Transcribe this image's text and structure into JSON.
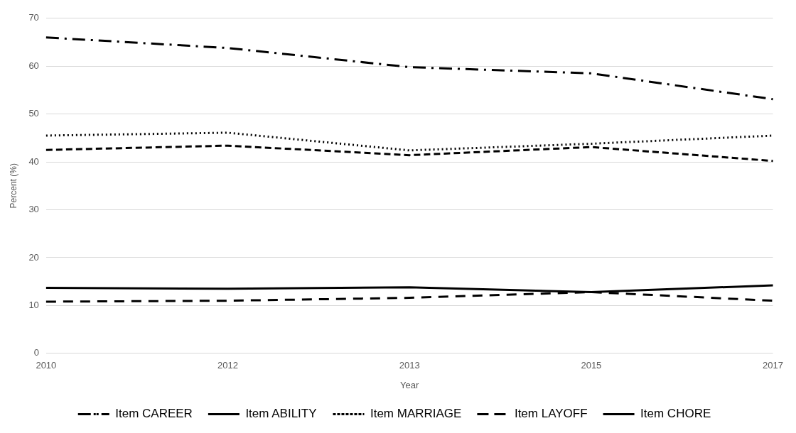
{
  "chart_data": {
    "type": "line",
    "xlabel": "Year",
    "ylabel": "Percent (%)",
    "categories": [
      "2010",
      "2012",
      "2013",
      "2015",
      "2017"
    ],
    "series": [
      {
        "name": "Item CAREER",
        "color": "#000000",
        "line_style": "dashdot",
        "values": [
          66.0,
          63.8,
          59.8,
          58.5,
          53.1
        ]
      },
      {
        "name": "Item ABILITY",
        "color": "#000000",
        "line_style": "dashed",
        "values": [
          42.5,
          43.4,
          41.4,
          43.1,
          40.2
        ]
      },
      {
        "name": "Item MARRIAGE",
        "color": "#000000",
        "line_style": "dotted",
        "values": [
          45.5,
          46.1,
          42.4,
          43.8,
          45.5
        ]
      },
      {
        "name": "Item LAYOFF",
        "color": "#000000",
        "line_style": "longdash",
        "values": [
          10.8,
          11.0,
          11.6,
          12.8,
          11.0
        ]
      },
      {
        "name": "Item CHORE",
        "color": "#000000",
        "line_style": "solid",
        "values": [
          13.7,
          13.5,
          13.8,
          12.8,
          14.2
        ]
      }
    ],
    "ylim": [
      0,
      70
    ],
    "yticks": [
      0,
      10,
      20,
      30,
      40,
      50,
      60,
      70
    ],
    "grid": "y",
    "legend": "bottom",
    "marker": "none"
  }
}
